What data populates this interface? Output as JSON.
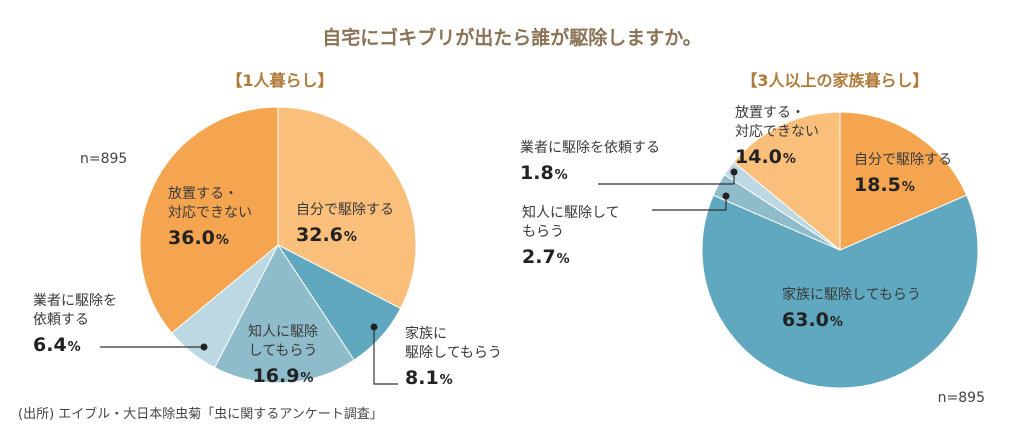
{
  "title": "自宅にゴキブリが出たら誰が駆除しますか。",
  "source": "(出所) エイブル・大日本除虫菊「虫に関するアンケート調査」",
  "colors": {
    "self": "#fbbf7c",
    "family": "#5fa8bf",
    "friend": "#8fbccb",
    "contractor": "#bcd8e3",
    "ignore": "#f5a550"
  },
  "chart_data": [
    {
      "type": "pie",
      "title": "【1人暮らし】",
      "n_label": "n=895",
      "slices": [
        {
          "key": "self",
          "label_lines": [
            "自分で駆除する"
          ],
          "value": 32.6,
          "value_text": "32.6",
          "color": "#fbbf7c"
        },
        {
          "key": "family",
          "label_lines": [
            "家族に",
            "駆除してもらう"
          ],
          "value": 8.1,
          "value_text": "8.1",
          "color": "#5fa8bf"
        },
        {
          "key": "friend",
          "label_lines": [
            "知人に駆除",
            "してもらう"
          ],
          "value": 16.9,
          "value_text": "16.9",
          "color": "#8fbccb"
        },
        {
          "key": "contractor",
          "label_lines": [
            "業者に駆除を",
            "依頼する"
          ],
          "value": 6.4,
          "value_text": "6.4",
          "color": "#bcd8e3"
        },
        {
          "key": "ignore",
          "label_lines": [
            "放置する・",
            "対応できない"
          ],
          "value": 36.0,
          "value_text": "36.0",
          "color": "#f5a550"
        }
      ]
    },
    {
      "type": "pie",
      "title": "【3人以上の家族暮らし】",
      "n_label": "n=895",
      "slices": [
        {
          "key": "self",
          "label_lines": [
            "自分で駆除する"
          ],
          "value": 18.5,
          "value_text": "18.5",
          "color": "#f5a550"
        },
        {
          "key": "family",
          "label_lines": [
            "家族に駆除してもらう"
          ],
          "value": 63.0,
          "value_text": "63.0",
          "color": "#5fa8bf"
        },
        {
          "key": "friend",
          "label_lines": [
            "知人に駆除して",
            "もらう"
          ],
          "value": 2.7,
          "value_text": "2.7",
          "color": "#8fbccb"
        },
        {
          "key": "contractor",
          "label_lines": [
            "業者に駆除を依頼する"
          ],
          "value": 1.8,
          "value_text": "1.8",
          "color": "#bcd8e3"
        },
        {
          "key": "ignore",
          "label_lines": [
            "放置する・",
            "対応できない"
          ],
          "value": 14.0,
          "value_text": "14.0",
          "color": "#fbbf7c"
        }
      ]
    }
  ]
}
